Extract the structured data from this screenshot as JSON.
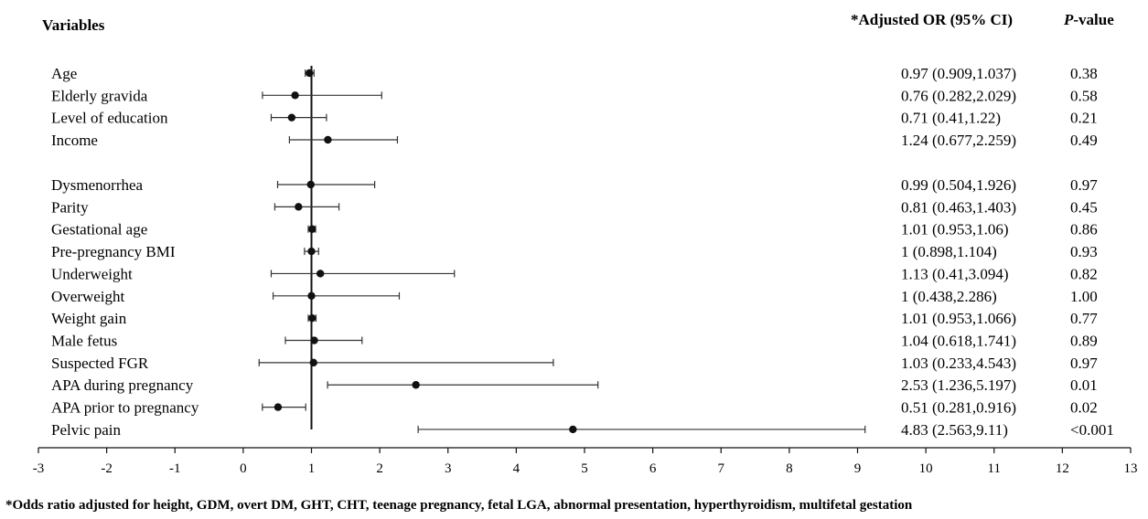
{
  "chart_data": {
    "type": "forest",
    "headers": {
      "variables": "Variables",
      "or": "*Adjusted OR (95% CI)",
      "p_italic": "P",
      "p_rest": "-value"
    },
    "reference_line": 1,
    "xlim": [
      -3,
      13
    ],
    "x_ticks": [
      "-3",
      "-2",
      "-1",
      "0",
      "1",
      "2",
      "3",
      "4",
      "5",
      "6",
      "7",
      "8",
      "9",
      "10",
      "11",
      "12",
      "13"
    ],
    "rows": [
      {
        "label": "Age",
        "or": 0.97,
        "lo": 0.909,
        "hi": 1.037,
        "or_text": "0.97 (0.909,1.037)",
        "p": "0.38"
      },
      {
        "label": "Elderly gravida",
        "or": 0.76,
        "lo": 0.282,
        "hi": 2.029,
        "or_text": "0.76 (0.282,2.029)",
        "p": "0.58"
      },
      {
        "label": "Level of education",
        "or": 0.71,
        "lo": 0.41,
        "hi": 1.22,
        "or_text": "0.71 (0.41,1.22)",
        "p": "0.21"
      },
      {
        "label": "Income",
        "or": 1.24,
        "lo": 0.677,
        "hi": 2.259,
        "or_text": "1.24 (0.677,2.259)",
        "p": "0.49"
      },
      {
        "label": "Dysmenorrhea",
        "or": 0.99,
        "lo": 0.504,
        "hi": 1.926,
        "or_text": "0.99 (0.504,1.926)",
        "p": "0.97"
      },
      {
        "label": "Parity",
        "or": 0.81,
        "lo": 0.463,
        "hi": 1.403,
        "or_text": "0.81 (0.463,1.403)",
        "p": "0.45"
      },
      {
        "label": "Gestational age",
        "or": 1.01,
        "lo": 0.953,
        "hi": 1.06,
        "or_text": "1.01 (0.953,1.06)",
        "p": "0.86"
      },
      {
        "label": "Pre-pregnancy BMI",
        "or": 1,
        "lo": 0.898,
        "hi": 1.104,
        "or_text": "1 (0.898,1.104)",
        "p": "0.93"
      },
      {
        "label": "Underweight",
        "or": 1.13,
        "lo": 0.41,
        "hi": 3.094,
        "or_text": "1.13 (0.41,3.094)",
        "p": "0.82"
      },
      {
        "label": "Overweight",
        "or": 1,
        "lo": 0.438,
        "hi": 2.286,
        "or_text": "1 (0.438,2.286)",
        "p": "1.00"
      },
      {
        "label": "Weight gain",
        "or": 1.01,
        "lo": 0.953,
        "hi": 1.066,
        "or_text": "1.01 (0.953,1.066)",
        "p": "0.77"
      },
      {
        "label": "Male fetus",
        "or": 1.04,
        "lo": 0.618,
        "hi": 1.741,
        "or_text": "1.04 (0.618,1.741)",
        "p": "0.89"
      },
      {
        "label": "Suspected FGR",
        "or": 1.03,
        "lo": 0.233,
        "hi": 4.543,
        "or_text": "1.03 (0.233,4.543)",
        "p": "0.97"
      },
      {
        "label": "APA during pregnancy",
        "or": 2.53,
        "lo": 1.236,
        "hi": 5.197,
        "or_text": "2.53 (1.236,5.197)",
        "p": "0.01"
      },
      {
        "label": "APA prior to pregnancy",
        "or": 0.51,
        "lo": 0.281,
        "hi": 0.916,
        "or_text": "0.51 (0.281,0.916)",
        "p": "0.02"
      },
      {
        "label": "Pelvic pain",
        "or": 4.83,
        "lo": 2.563,
        "hi": 9.11,
        "or_text": "4.83 (2.563,9.11)",
        "p": "<0.001"
      }
    ],
    "footnote": "*Odds ratio adjusted for height, GDM, overt DM, GHT, CHT, teenage pregnancy, fetal LGA, abnormal presentation, hyperthyroidism, multifetal gestation"
  }
}
